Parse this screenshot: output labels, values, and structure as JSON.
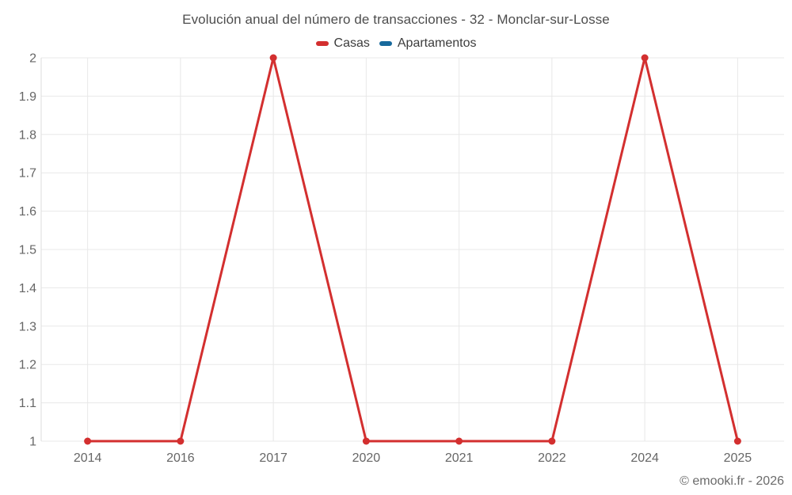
{
  "footer": "© emooki.fr - 2026",
  "colors": {
    "grid": "#e8e8e8",
    "axis_line": "#dedede",
    "tick_label": "#666666",
    "title_text": "#4d4d4d",
    "footer_text": "#6b6b6b",
    "background": "#ffffff"
  },
  "chart_data": {
    "type": "line",
    "title": "Evolución anual del número de transacciones - 32 - Monclar-sur-Losse",
    "categories": [
      "2014",
      "2016",
      "2017",
      "2020",
      "2021",
      "2022",
      "2024",
      "2025"
    ],
    "series": [
      {
        "name": "Casas",
        "color": "#d32f2f",
        "values": [
          1,
          1,
          2,
          1,
          1,
          1,
          2,
          1
        ]
      },
      {
        "name": "Apartamentos",
        "color": "#17699c",
        "values": []
      }
    ],
    "xlabel": "",
    "ylabel": "",
    "ylim": [
      1,
      2
    ],
    "ytick_labels": [
      "1",
      "1.1",
      "1.2",
      "1.3",
      "1.4",
      "1.5",
      "1.6",
      "1.7",
      "1.8",
      "1.9",
      "2"
    ],
    "grid": true,
    "legend_position": "top",
    "marker": "circle",
    "line_width": 3
  }
}
